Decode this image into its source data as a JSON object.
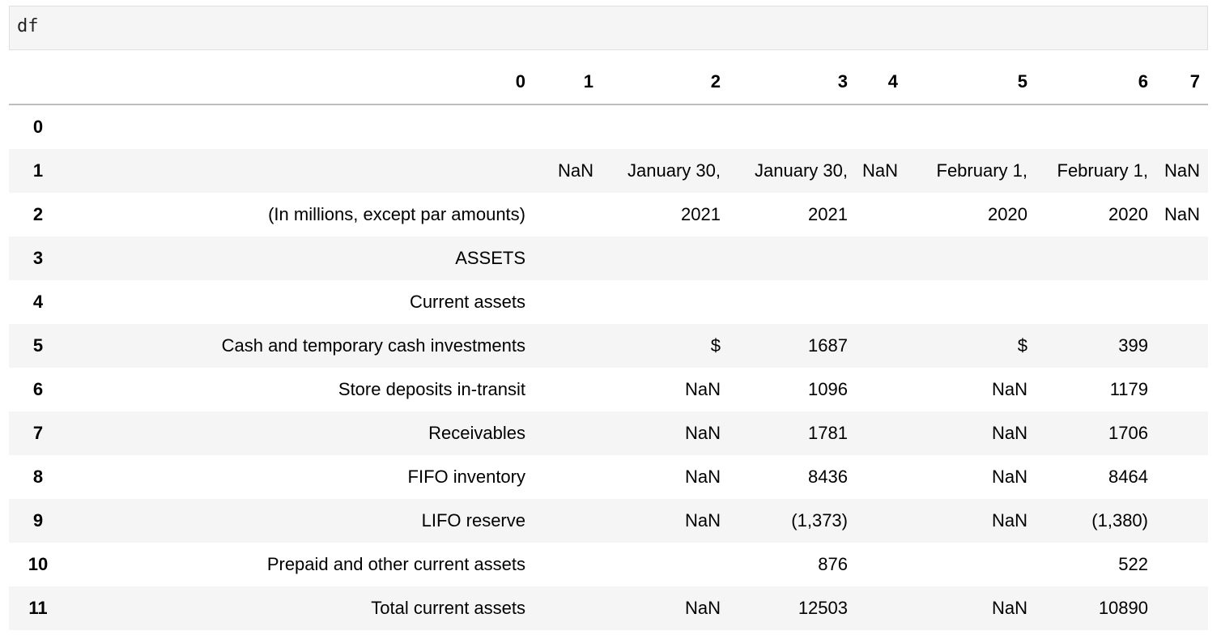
{
  "cell": {
    "code": "df"
  },
  "table": {
    "columns": [
      "0",
      "1",
      "2",
      "3",
      "4",
      "5",
      "6",
      "7"
    ],
    "rows": [
      {
        "index": "0",
        "cells": [
          "",
          "",
          "",
          "",
          "",
          "",
          "",
          ""
        ]
      },
      {
        "index": "1",
        "cells": [
          "",
          "NaN",
          "January 30,",
          "January 30,",
          "NaN",
          "February 1,",
          "February 1,",
          "NaN"
        ]
      },
      {
        "index": "2",
        "cells": [
          "(In millions, except par amounts)",
          "",
          "2021",
          "2021",
          "",
          "2020",
          "2020",
          "NaN"
        ]
      },
      {
        "index": "3",
        "cells": [
          "ASSETS",
          "",
          "",
          "",
          "",
          "",
          "",
          ""
        ]
      },
      {
        "index": "4",
        "cells": [
          "Current assets",
          "",
          "",
          "",
          "",
          "",
          "",
          ""
        ]
      },
      {
        "index": "5",
        "cells": [
          "Cash and temporary cash investments",
          "",
          "$",
          "1687",
          "",
          "$",
          "399",
          ""
        ]
      },
      {
        "index": "6",
        "cells": [
          "Store deposits in-transit",
          "",
          "NaN",
          "1096",
          "",
          "NaN",
          "1179",
          ""
        ]
      },
      {
        "index": "7",
        "cells": [
          "Receivables",
          "",
          "NaN",
          "1781",
          "",
          "NaN",
          "1706",
          ""
        ]
      },
      {
        "index": "8",
        "cells": [
          "FIFO inventory",
          "",
          "NaN",
          "8436",
          "",
          "NaN",
          "8464",
          ""
        ]
      },
      {
        "index": "9",
        "cells": [
          "LIFO reserve",
          "",
          "NaN",
          "(1,373)",
          "",
          "NaN",
          "(1,380)",
          ""
        ]
      },
      {
        "index": "10",
        "cells": [
          "Prepaid and other current assets",
          "",
          "",
          "876",
          "",
          "",
          "522",
          ""
        ]
      },
      {
        "index": "11",
        "cells": [
          "Total current assets",
          "",
          "NaN",
          "12503",
          "",
          "NaN",
          "10890",
          ""
        ]
      }
    ]
  }
}
